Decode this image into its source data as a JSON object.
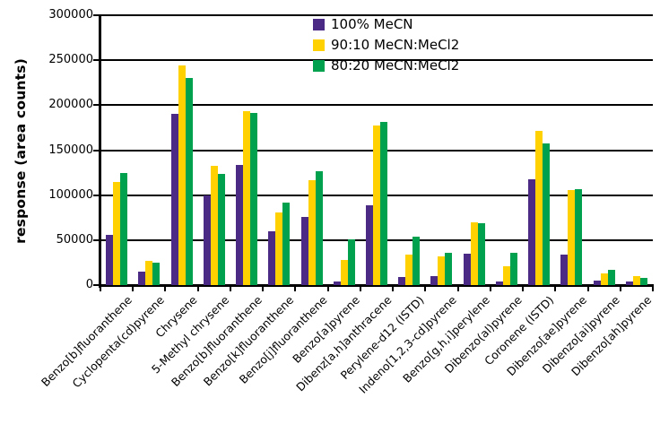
{
  "chart_data": {
    "type": "bar",
    "title": "",
    "xlabel": "",
    "ylabel": "response (area counts)",
    "ylim": [
      0,
      300000
    ],
    "yticks": [
      0,
      50000,
      100000,
      150000,
      200000,
      250000,
      300000
    ],
    "grid": "horizontal-black",
    "legend_position": "top-center-overlay",
    "background_color": "#ffffff",
    "axis_color": "#000000",
    "categories": [
      "Benzo[b]fluoranthene",
      "Cyclopenta(cd)pyrene",
      "Chrysene",
      "5-Methyl chrysene",
      "Benzo[b]fluoranthene",
      "Benzo[k]fluoranthene",
      "Benzo[j]fluoranthene",
      "Benzo[a]pyrene",
      "Dibenz[a,h]anthracene",
      "Perylene-d12 (ISTD)",
      "Indeno[1,2,3-cd]pyrene",
      "Benzo[g,h,i]perylene",
      "Dibenzo(al)pyrene",
      "Coronene (ISTD)",
      "Dibenzo[ae]pyrene",
      "Dibenzo[ai]pyrene",
      "Dibenzo[ah]pyrene"
    ],
    "series": [
      {
        "name": "100% MeCN",
        "color": "#4b2a85",
        "values": [
          56000,
          15000,
          190000,
          100000,
          134000,
          60000,
          76000,
          4000,
          89000,
          9000,
          10000,
          35000,
          4000,
          118000,
          34000,
          5000,
          3500
        ]
      },
      {
        "name": "90:10 MeCN:MeCl2",
        "color": "#ffd100",
        "values": [
          115000,
          27000,
          244000,
          133000,
          193000,
          81000,
          117000,
          28000,
          177000,
          34000,
          32000,
          70000,
          21000,
          171000,
          106000,
          13000,
          10000
        ]
      },
      {
        "name": "80:20 MeCN:MeCl2",
        "color": "#00a14e",
        "values": [
          125000,
          25000,
          230000,
          124000,
          191000,
          92000,
          127000,
          51000,
          181000,
          54000,
          36000,
          69000,
          36000,
          157000,
          107000,
          17000,
          8000
        ]
      }
    ]
  }
}
